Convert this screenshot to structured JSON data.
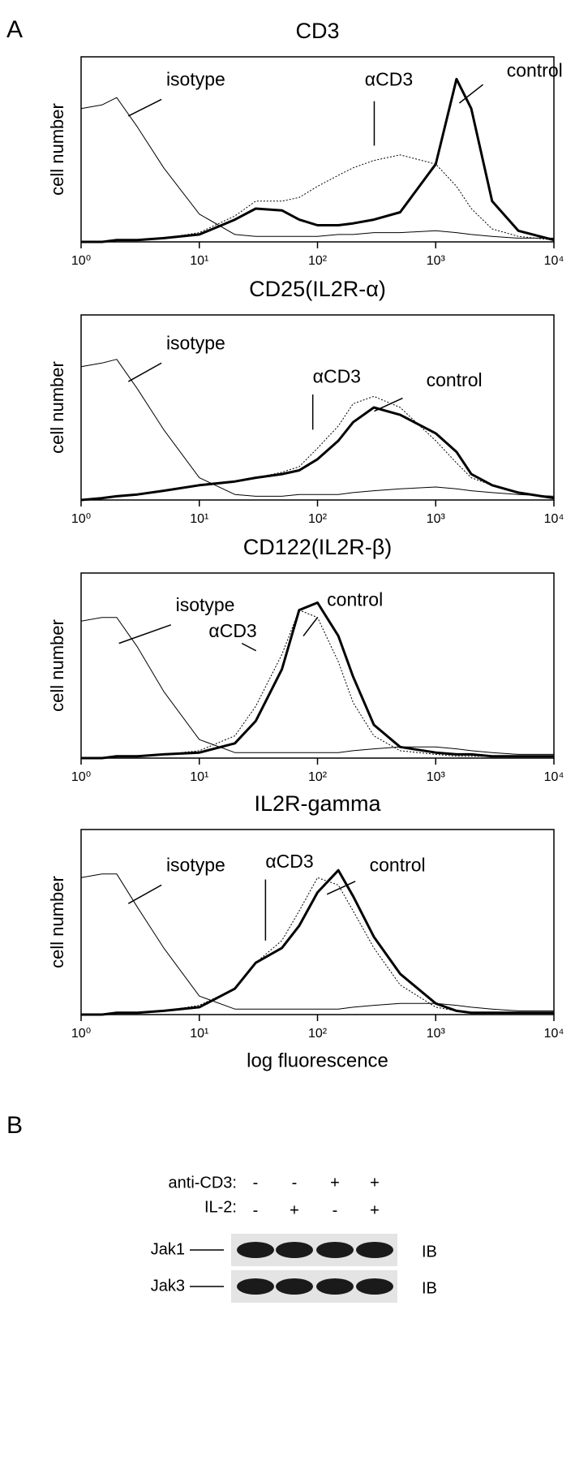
{
  "panel_a_label": "A",
  "chart_data": [
    {
      "type": "line",
      "title": "CD3",
      "y_label": "cell number",
      "xscale": "log",
      "xlim": [
        1,
        10000
      ],
      "ylim": [
        0,
        100
      ],
      "xticks": [
        {
          "value": 1,
          "label": "10⁰"
        },
        {
          "value": 10,
          "label": "10¹"
        },
        {
          "value": 100,
          "label": "10²"
        },
        {
          "value": 1000,
          "label": "10³"
        },
        {
          "value": 10000,
          "label": "10⁴"
        }
      ],
      "x": [
        1,
        1.5,
        2,
        3,
        5,
        10,
        20,
        30,
        50,
        70,
        100,
        150,
        200,
        300,
        500,
        1000,
        1500,
        2000,
        3000,
        5000,
        10000
      ],
      "series": [
        {
          "name": "isotype",
          "color": "#000000",
          "width": 1,
          "dash": false,
          "values": [
            72,
            74,
            78,
            62,
            40,
            15,
            4,
            3,
            3,
            3,
            3,
            4,
            4,
            5,
            5,
            6,
            5,
            4,
            3,
            2,
            2
          ]
        },
        {
          "name": "αCD3",
          "color": "#000000",
          "width": 1,
          "dash": true,
          "values": [
            0,
            0,
            1,
            1,
            2,
            5,
            14,
            22,
            22,
            24,
            30,
            36,
            40,
            44,
            47,
            42,
            30,
            18,
            7,
            3,
            1
          ]
        },
        {
          "name": "control",
          "color": "#000000",
          "width": 3,
          "dash": false,
          "values": [
            0,
            0,
            1,
            1,
            2,
            4,
            12,
            18,
            17,
            12,
            9,
            9,
            10,
            12,
            16,
            42,
            88,
            72,
            22,
            6,
            1
          ]
        }
      ]
    },
    {
      "type": "line",
      "title": "CD25(IL2R-α)",
      "y_label": "cell number",
      "xscale": "log",
      "xlim": [
        1,
        10000
      ],
      "ylim": [
        0,
        100
      ],
      "xticks": [
        {
          "value": 1,
          "label": "10⁰"
        },
        {
          "value": 10,
          "label": "10¹"
        },
        {
          "value": 100,
          "label": "10²"
        },
        {
          "value": 1000,
          "label": "10³"
        },
        {
          "value": 10000,
          "label": "10⁴"
        }
      ],
      "x": [
        1,
        1.5,
        2,
        3,
        5,
        10,
        20,
        30,
        50,
        70,
        100,
        150,
        200,
        300,
        500,
        1000,
        1500,
        2000,
        3000,
        5000,
        10000
      ],
      "series": [
        {
          "name": "isotype",
          "color": "#000000",
          "width": 1,
          "dash": false,
          "values": [
            72,
            74,
            76,
            60,
            38,
            12,
            3,
            2,
            2,
            3,
            3,
            3,
            4,
            5,
            6,
            7,
            6,
            5,
            4,
            3,
            2
          ]
        },
        {
          "name": "αCD3",
          "color": "#000000",
          "width": 1,
          "dash": true,
          "values": [
            0,
            1,
            2,
            3,
            5,
            8,
            10,
            12,
            15,
            18,
            28,
            40,
            52,
            56,
            50,
            32,
            20,
            12,
            8,
            4,
            1
          ]
        },
        {
          "name": "control",
          "color": "#000000",
          "width": 3,
          "dash": false,
          "values": [
            0,
            1,
            2,
            3,
            5,
            8,
            10,
            12,
            14,
            16,
            22,
            32,
            42,
            50,
            46,
            36,
            26,
            14,
            8,
            4,
            1
          ]
        }
      ]
    },
    {
      "type": "line",
      "title": "CD122(IL2R-β)",
      "y_label": "cell number",
      "xscale": "log",
      "xlim": [
        1,
        10000
      ],
      "ylim": [
        0,
        100
      ],
      "xticks": [
        {
          "value": 1,
          "label": "10⁰"
        },
        {
          "value": 10,
          "label": "10¹"
        },
        {
          "value": 100,
          "label": "10²"
        },
        {
          "value": 1000,
          "label": "10³"
        },
        {
          "value": 10000,
          "label": "10⁴"
        }
      ],
      "x": [
        1,
        1.5,
        2,
        3,
        5,
        10,
        20,
        30,
        50,
        70,
        100,
        150,
        200,
        300,
        500,
        1000,
        1500,
        2000,
        3000,
        5000,
        10000
      ],
      "series": [
        {
          "name": "isotype",
          "color": "#000000",
          "width": 1,
          "dash": false,
          "values": [
            74,
            76,
            76,
            60,
            36,
            10,
            3,
            3,
            3,
            3,
            3,
            3,
            4,
            5,
            6,
            6,
            5,
            4,
            3,
            2,
            2
          ]
        },
        {
          "name": "αCD3",
          "color": "#000000",
          "width": 1,
          "dash": true,
          "values": [
            0,
            0,
            1,
            1,
            2,
            4,
            12,
            28,
            56,
            80,
            76,
            52,
            30,
            12,
            4,
            2,
            1,
            1,
            1,
            1,
            1
          ]
        },
        {
          "name": "control",
          "color": "#000000",
          "width": 3,
          "dash": false,
          "values": [
            0,
            0,
            1,
            1,
            2,
            3,
            8,
            20,
            48,
            80,
            84,
            66,
            44,
            18,
            6,
            3,
            2,
            2,
            1,
            1,
            1
          ]
        }
      ]
    },
    {
      "type": "line",
      "title": "IL2R-gamma",
      "y_label": "cell number",
      "x_label": "log fluorescence",
      "xscale": "log",
      "xlim": [
        1,
        10000
      ],
      "ylim": [
        0,
        100
      ],
      "xticks": [
        {
          "value": 1,
          "label": "10⁰"
        },
        {
          "value": 10,
          "label": "10¹"
        },
        {
          "value": 100,
          "label": "10²"
        },
        {
          "value": 1000,
          "label": "10³"
        },
        {
          "value": 10000,
          "label": "10⁴"
        }
      ],
      "x": [
        1,
        1.5,
        2,
        3,
        5,
        10,
        20,
        30,
        50,
        70,
        100,
        150,
        200,
        300,
        500,
        1000,
        1500,
        2000,
        3000,
        5000,
        10000
      ],
      "series": [
        {
          "name": "isotype",
          "color": "#000000",
          "width": 1,
          "dash": false,
          "values": [
            74,
            76,
            76,
            58,
            36,
            10,
            3,
            3,
            3,
            3,
            3,
            3,
            4,
            5,
            6,
            6,
            5,
            4,
            3,
            2,
            2
          ]
        },
        {
          "name": "αCD3",
          "color": "#000000",
          "width": 1,
          "dash": true,
          "values": [
            0,
            0,
            1,
            1,
            2,
            5,
            14,
            28,
            40,
            56,
            74,
            70,
            56,
            36,
            16,
            4,
            2,
            1,
            1,
            1,
            1
          ]
        },
        {
          "name": "control",
          "color": "#000000",
          "width": 3,
          "dash": false,
          "values": [
            0,
            0,
            1,
            1,
            2,
            4,
            14,
            28,
            36,
            48,
            66,
            78,
            64,
            42,
            22,
            6,
            2,
            1,
            1,
            1,
            1
          ]
        }
      ]
    }
  ],
  "panel_b": {
    "label": "B",
    "rows": [
      {
        "label": "anti-CD3:",
        "values": [
          "-",
          "-",
          "+",
          "+"
        ]
      },
      {
        "label": "IL-2:",
        "values": [
          "-",
          "+",
          "-",
          "+"
        ]
      }
    ],
    "blots": [
      {
        "label": "Jak1",
        "ib": "IB"
      },
      {
        "label": "Jak3",
        "ib": "IB"
      }
    ]
  }
}
